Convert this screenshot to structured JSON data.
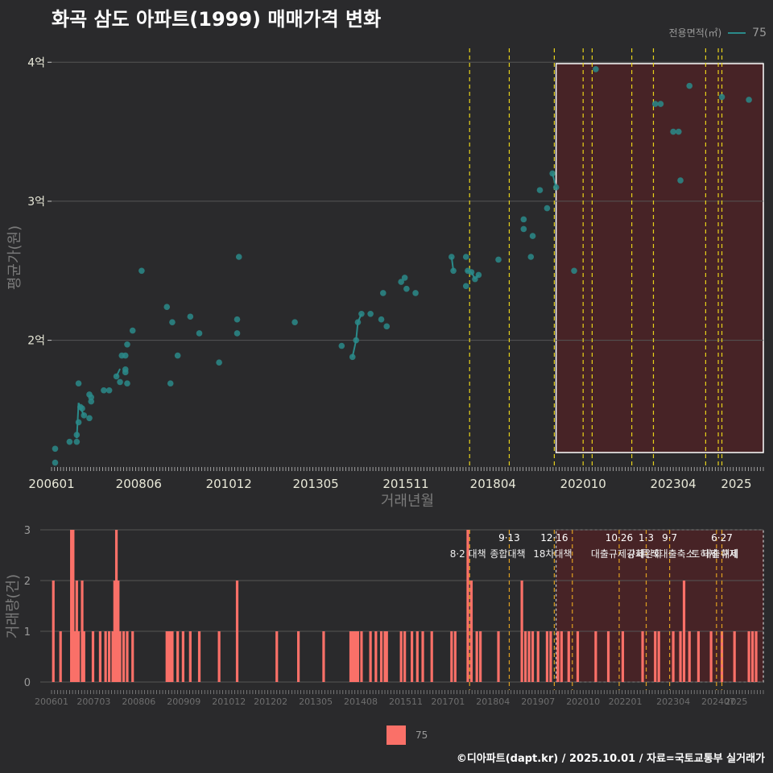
{
  "title": "화곡 삼도 아파트(1999) 매매가격 변화",
  "footer": "©디아파트(dapt.kr) / 2025.10.01 / 자료=국토교통부 실거래가",
  "legend_top": {
    "label": "전용면적(㎡)",
    "value": "75"
  },
  "legend_bottom": {
    "value": "75"
  },
  "colors": {
    "background": "#2a2a2c",
    "line": "#2a8a8a",
    "bar": "#fa7068",
    "policy_line": "#e8d21a",
    "highlight_fill": "#4a2226",
    "grid": "#555555"
  },
  "chart_data": [
    {
      "type": "line",
      "title": "화곡 삼도 아파트(1999) 매매가격 변화",
      "xlabel": "거래년월",
      "ylabel": "평균가(원)",
      "x_ticks": [
        "200601",
        "200806",
        "201012",
        "201305",
        "201511",
        "201804",
        "202010",
        "202304",
        "2025"
      ],
      "y_ticks": [
        {
          "value": 2,
          "label": "2억"
        },
        {
          "value": 3,
          "label": "3억"
        },
        {
          "value": 4,
          "label": "4억"
        }
      ],
      "xlim": [
        2006.0,
        2025.75
      ],
      "ylim": [
        1.1,
        4.1
      ],
      "series": [
        {
          "name": "75",
          "points": [
            [
              2006.1,
              1.12
            ],
            [
              2006.1,
              1.22
            ],
            [
              2006.5,
              1.27
            ],
            [
              2006.7,
              1.27
            ],
            [
              2006.7,
              1.32
            ],
            [
              2006.75,
              1.41
            ],
            [
              2006.8,
              1.52
            ],
            [
              2006.85,
              1.51
            ],
            [
              2006.9,
              1.46
            ],
            [
              2007.05,
              1.44
            ],
            [
              2007.05,
              1.61
            ],
            [
              2007.1,
              1.56
            ],
            [
              2007.1,
              1.59
            ],
            [
              2006.75,
              1.69
            ],
            [
              2007.45,
              1.64
            ],
            [
              2007.6,
              1.64
            ],
            [
              2007.8,
              1.74
            ],
            [
              2007.9,
              1.7
            ],
            [
              2007.95,
              1.89
            ],
            [
              2008.05,
              1.79
            ],
            [
              2008.05,
              1.77
            ],
            [
              2008.05,
              1.89
            ],
            [
              2008.1,
              1.97
            ],
            [
              2008.1,
              1.69
            ],
            [
              2008.25,
              2.07
            ],
            [
              2008.5,
              2.5
            ],
            [
              2009.2,
              2.24
            ],
            [
              2009.3,
              1.69
            ],
            [
              2009.35,
              2.13
            ],
            [
              2009.5,
              1.89
            ],
            [
              2009.85,
              2.17
            ],
            [
              2010.1,
              2.05
            ],
            [
              2010.65,
              1.84
            ],
            [
              2011.15,
              2.05
            ],
            [
              2011.15,
              2.15
            ],
            [
              2011.2,
              2.6
            ],
            [
              2012.75,
              2.13
            ],
            [
              2014.05,
              1.96
            ],
            [
              2014.35,
              1.88
            ],
            [
              2014.45,
              2.0
            ],
            [
              2014.5,
              2.13
            ],
            [
              2014.6,
              2.19
            ],
            [
              2014.85,
              2.19
            ],
            [
              2015.15,
              2.15
            ],
            [
              2015.2,
              2.34
            ],
            [
              2015.3,
              2.1
            ],
            [
              2015.7,
              2.42
            ],
            [
              2015.8,
              2.45
            ],
            [
              2015.85,
              2.37
            ],
            [
              2016.1,
              2.34
            ],
            [
              2017.1,
              2.6
            ],
            [
              2017.15,
              2.5
            ],
            [
              2017.5,
              2.6
            ],
            [
              2017.5,
              2.39
            ],
            [
              2017.55,
              2.5
            ],
            [
              2017.65,
              2.49
            ],
            [
              2017.75,
              2.44
            ],
            [
              2017.85,
              2.47
            ],
            [
              2018.4,
              2.58
            ],
            [
              2019.1,
              2.87
            ],
            [
              2019.1,
              2.8
            ],
            [
              2019.3,
              2.6
            ],
            [
              2019.35,
              2.75
            ],
            [
              2019.55,
              3.08
            ],
            [
              2019.75,
              2.95
            ],
            [
              2019.9,
              3.2
            ],
            [
              2020.0,
              3.1
            ],
            [
              2020.5,
              2.5
            ],
            [
              2021.1,
              3.95
            ],
            [
              2022.75,
              3.7
            ],
            [
              2022.9,
              3.7
            ],
            [
              2023.25,
              3.5
            ],
            [
              2023.4,
              3.5
            ],
            [
              2023.45,
              3.15
            ],
            [
              2023.7,
              3.83
            ],
            [
              2024.6,
              3.75
            ],
            [
              2025.35,
              3.73
            ]
          ]
        }
      ],
      "policy_dates": [
        2017.6,
        2018.7,
        2019.95,
        2020.75,
        2021.0,
        2022.1,
        2022.7,
        2024.15,
        2024.5,
        2024.6
      ],
      "highlight_range": [
        2020.0,
        2025.75
      ],
      "grid": true,
      "legend_placement": "top-right"
    },
    {
      "type": "bar",
      "title": "",
      "xlabel": "",
      "ylabel": "거래량(건)",
      "x_ticks": [
        "200601",
        "200703",
        "200806",
        "200909",
        "201012",
        "201202",
        "201305",
        "201408",
        "201511",
        "201701",
        "201804",
        "201907",
        "202010",
        "202201",
        "202304",
        "202407",
        "2025"
      ],
      "y_ticks": [
        0,
        1,
        2,
        3
      ],
      "ylim": [
        0,
        3
      ],
      "series": [
        {
          "name": "75",
          "points": [
            [
              2006.05,
              2
            ],
            [
              2006.25,
              1
            ],
            [
              2006.55,
              3
            ],
            [
              2006.6,
              3
            ],
            [
              2006.65,
              1
            ],
            [
              2006.7,
              2
            ],
            [
              2006.75,
              1
            ],
            [
              2006.85,
              2
            ],
            [
              2006.9,
              1
            ],
            [
              2007.15,
              1
            ],
            [
              2007.35,
              1
            ],
            [
              2007.5,
              1
            ],
            [
              2007.6,
              1
            ],
            [
              2007.7,
              1
            ],
            [
              2007.75,
              2
            ],
            [
              2007.8,
              3
            ],
            [
              2007.85,
              2
            ],
            [
              2007.9,
              1
            ],
            [
              2008.0,
              1
            ],
            [
              2008.1,
              1
            ],
            [
              2008.25,
              1
            ],
            [
              2009.2,
              1
            ],
            [
              2009.25,
              1
            ],
            [
              2009.3,
              1
            ],
            [
              2009.35,
              1
            ],
            [
              2009.5,
              1
            ],
            [
              2009.65,
              1
            ],
            [
              2009.85,
              1
            ],
            [
              2010.1,
              1
            ],
            [
              2010.65,
              1
            ],
            [
              2011.15,
              2
            ],
            [
              2012.25,
              1
            ],
            [
              2012.85,
              1
            ],
            [
              2013.55,
              1
            ],
            [
              2014.3,
              1
            ],
            [
              2014.35,
              1
            ],
            [
              2014.4,
              1
            ],
            [
              2014.45,
              1
            ],
            [
              2014.5,
              1
            ],
            [
              2014.6,
              1
            ],
            [
              2014.85,
              1
            ],
            [
              2015.0,
              1
            ],
            [
              2015.15,
              1
            ],
            [
              2015.25,
              1
            ],
            [
              2015.3,
              1
            ],
            [
              2015.7,
              1
            ],
            [
              2015.8,
              1
            ],
            [
              2016.0,
              1
            ],
            [
              2016.15,
              1
            ],
            [
              2016.3,
              1
            ],
            [
              2016.55,
              1
            ],
            [
              2017.1,
              1
            ],
            [
              2017.2,
              1
            ],
            [
              2017.55,
              3
            ],
            [
              2017.65,
              2
            ],
            [
              2017.8,
              1
            ],
            [
              2017.9,
              1
            ],
            [
              2018.4,
              1
            ],
            [
              2019.05,
              2
            ],
            [
              2019.15,
              1
            ],
            [
              2019.25,
              1
            ],
            [
              2019.35,
              1
            ],
            [
              2019.5,
              1
            ],
            [
              2019.75,
              1
            ],
            [
              2019.85,
              1
            ],
            [
              2020.05,
              1
            ],
            [
              2020.15,
              1
            ],
            [
              2020.35,
              1
            ],
            [
              2020.6,
              1
            ],
            [
              2021.1,
              1
            ],
            [
              2021.45,
              1
            ],
            [
              2021.85,
              1
            ],
            [
              2022.4,
              1
            ],
            [
              2022.75,
              1
            ],
            [
              2022.85,
              1
            ],
            [
              2023.25,
              1
            ],
            [
              2023.45,
              1
            ],
            [
              2023.55,
              2
            ],
            [
              2023.7,
              1
            ],
            [
              2023.95,
              1
            ],
            [
              2024.3,
              1
            ],
            [
              2024.6,
              1
            ],
            [
              2024.95,
              1
            ],
            [
              2025.35,
              1
            ],
            [
              2025.45,
              1
            ],
            [
              2025.55,
              1
            ]
          ]
        }
      ],
      "policy_events": [
        {
          "x": 2017.6,
          "date": "",
          "label": "8·2 대책"
        },
        {
          "x": 2018.7,
          "date": "9·13",
          "label": "종합대책"
        },
        {
          "x": 2019.95,
          "date": "12·16",
          "label": "18차대책"
        },
        {
          "x": 2020.45,
          "date": "",
          "label": ""
        },
        {
          "x": 2021.75,
          "date": "10·26",
          "label": "대출규제강화"
        },
        {
          "x": 2022.5,
          "date": "1·3",
          "label": "규제완화"
        },
        {
          "x": 2023.15,
          "date": "9·7",
          "label": "특례대출축소"
        },
        {
          "x": 2024.45,
          "date": "",
          "label": "토허제 해제"
        },
        {
          "x": 2024.6,
          "date": "6·27",
          "label": "대출규제"
        }
      ],
      "highlight_range": [
        2020.0,
        2025.75
      ],
      "grid": true,
      "legend_placement": "bottom-center"
    }
  ]
}
